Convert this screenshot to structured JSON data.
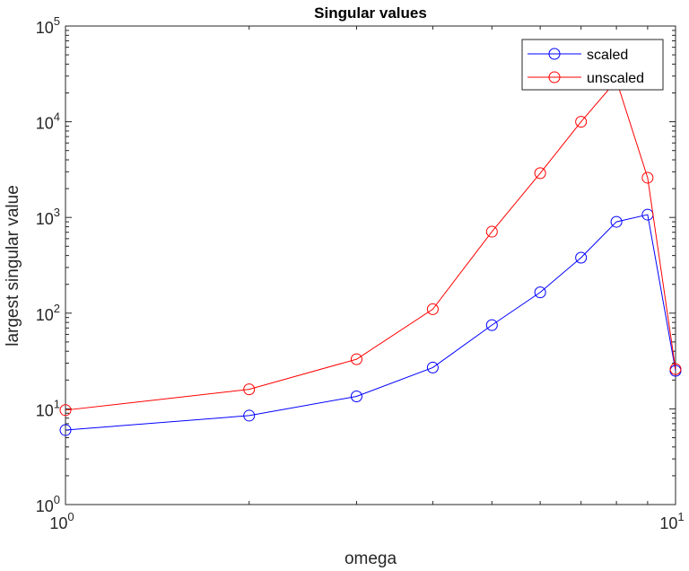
{
  "chart_data": {
    "type": "line",
    "title": "Singular values",
    "xlabel": "omega",
    "ylabel": "largest singular value",
    "x_scale": "log",
    "y_scale": "log",
    "xlim": [
      1,
      10
    ],
    "ylim": [
      1,
      100000
    ],
    "grid": false,
    "legend_placement": "top-right",
    "x_ticks": [
      {
        "base": "10",
        "exp": "0",
        "value": 1
      },
      {
        "base": "10",
        "exp": "1",
        "value": 10
      }
    ],
    "y_ticks": [
      {
        "base": "10",
        "exp": "0",
        "value": 1
      },
      {
        "base": "10",
        "exp": "1",
        "value": 10
      },
      {
        "base": "10",
        "exp": "2",
        "value": 100
      },
      {
        "base": "10",
        "exp": "3",
        "value": 1000
      },
      {
        "base": "10",
        "exp": "4",
        "value": 10000
      },
      {
        "base": "10",
        "exp": "5",
        "value": 100000
      }
    ],
    "x": [
      1,
      2,
      3,
      4,
      5,
      6,
      7,
      8,
      9,
      10
    ],
    "series": [
      {
        "name": "scaled",
        "color": "#0000ff",
        "marker": "circle",
        "values": [
          6.0,
          8.5,
          13.5,
          27,
          75,
          165,
          380,
          900,
          1070,
          25
        ]
      },
      {
        "name": "unscaled",
        "color": "#ff0000",
        "marker": "circle",
        "values": [
          9.7,
          16,
          33,
          110,
          710,
          2900,
          10000,
          27000,
          2600,
          26
        ]
      }
    ]
  }
}
